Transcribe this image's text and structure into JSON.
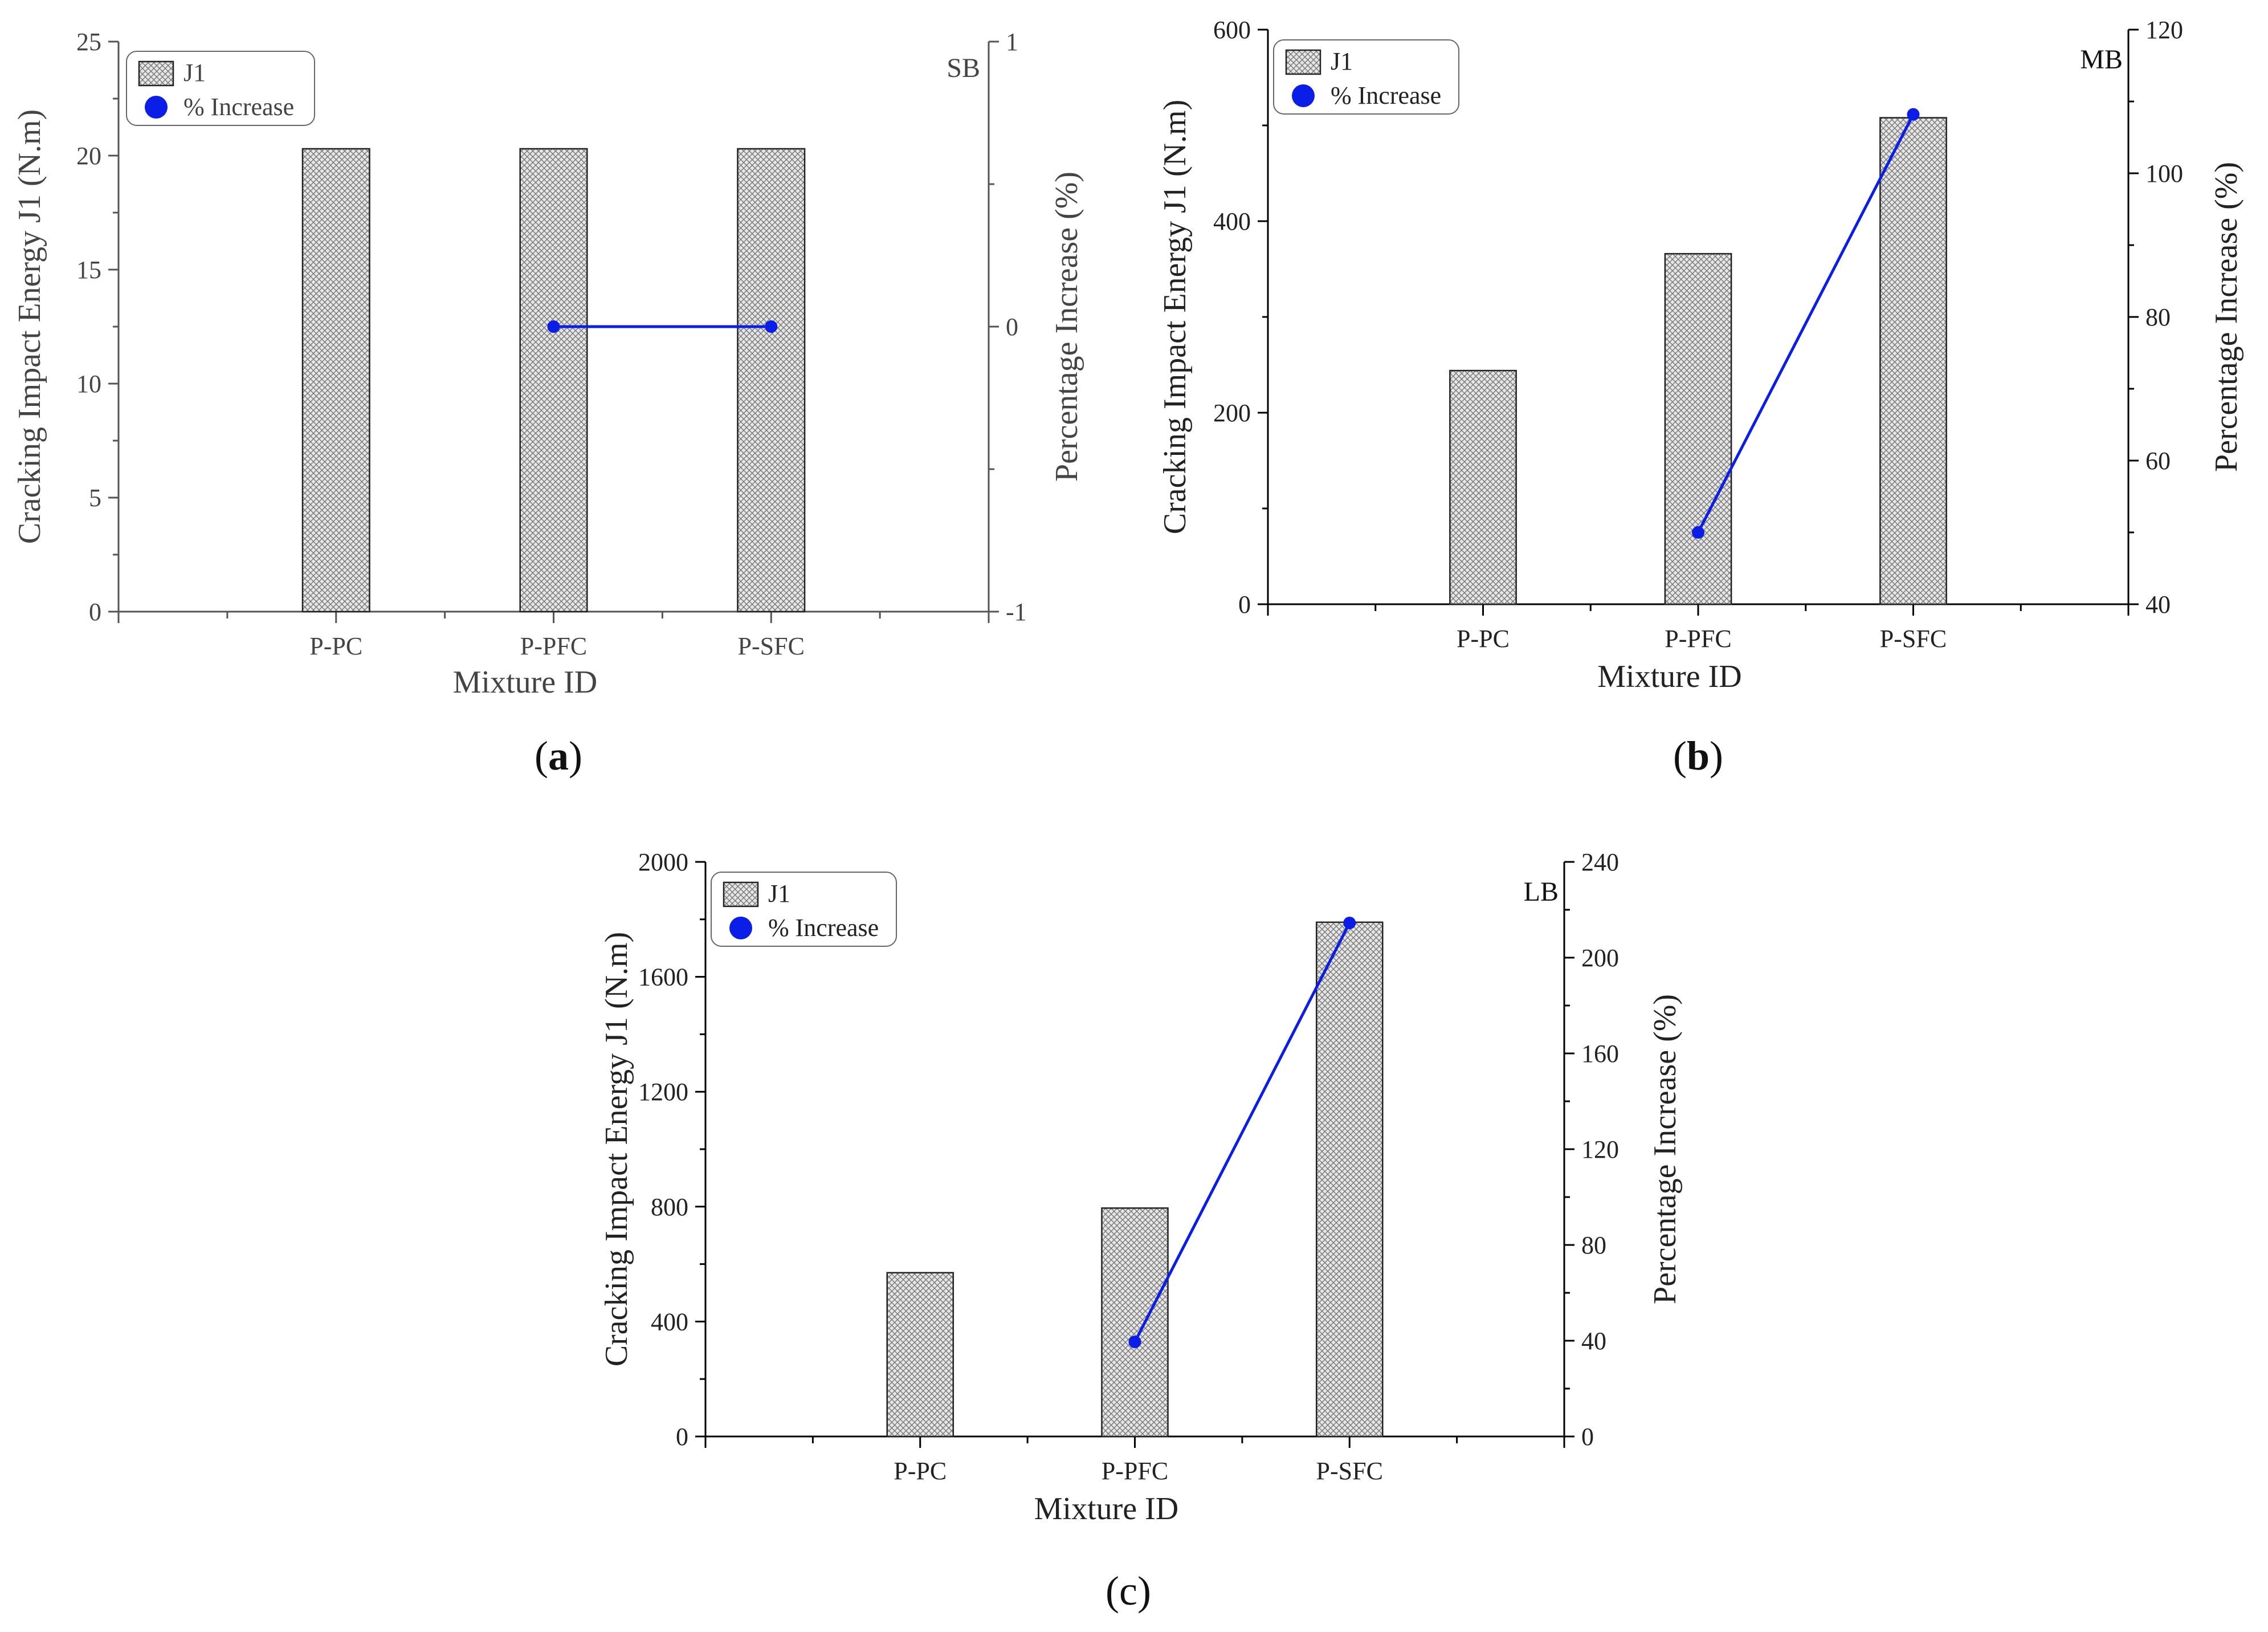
{
  "chart_data": [
    {
      "type": "bar",
      "panel": "a",
      "caption_letter": "a",
      "tag": "SB",
      "xlabel": "Mixture ID",
      "ylabel": "Cracking Impact Energy J1 (N.m)",
      "y2label": "Percentage Increase (%)",
      "categories": [
        "P-PC",
        "P-PFC",
        "P-SFC"
      ],
      "ylim": [
        0,
        25
      ],
      "yticks": [
        "0",
        "5",
        "10",
        "15",
        "20",
        "25"
      ],
      "y2lim": [
        -1,
        1
      ],
      "y2ticks": [
        "-1",
        "0",
        "1"
      ],
      "series": [
        {
          "name": "J1",
          "kind": "bar",
          "values": [
            20.3,
            20.3,
            20.3
          ]
        },
        {
          "name": "% Increase",
          "kind": "line",
          "color": "#0a1ee8",
          "values": [
            null,
            0,
            0
          ]
        }
      ]
    },
    {
      "type": "bar",
      "panel": "b",
      "caption_letter": "b",
      "tag": "MB",
      "xlabel": "Mixture ID",
      "ylabel": "Cracking Impact Energy J1 (N.m)",
      "y2label": "Percentage Increase (%)",
      "categories": [
        "P-PC",
        "P-PFC",
        "P-SFC"
      ],
      "ylim": [
        0,
        600
      ],
      "yticks": [
        "0",
        "200",
        "400",
        "600"
      ],
      "y2lim": [
        40,
        120
      ],
      "y2ticks": [
        "40",
        "60",
        "80",
        "100",
        "120"
      ],
      "series": [
        {
          "name": "J1",
          "kind": "bar",
          "values": [
            244,
            366,
            508
          ]
        },
        {
          "name": "% Increase",
          "kind": "line",
          "color": "#0a1ee8",
          "values": [
            null,
            50,
            108.2
          ]
        }
      ]
    },
    {
      "type": "bar",
      "panel": "c",
      "caption_letter": "c",
      "tag": "LB",
      "xlabel": "Mixture ID",
      "ylabel": "Cracking Impact Energy J1 (N.m)",
      "y2label": "Percentage Increase (%)",
      "categories": [
        "P-PC",
        "P-PFC",
        "P-SFC"
      ],
      "ylim": [
        0,
        2000
      ],
      "yticks": [
        "0",
        "400",
        "800",
        "1200",
        "1600",
        "2000"
      ],
      "y2lim": [
        0,
        240
      ],
      "y2ticks": [
        "0",
        "40",
        "80",
        "120",
        "160",
        "200",
        "240"
      ],
      "series": [
        {
          "name": "J1",
          "kind": "bar",
          "values": [
            570,
            795,
            1790
          ]
        },
        {
          "name": "% Increase",
          "kind": "line",
          "color": "#0a1ee8",
          "values": [
            null,
            39.5,
            214.5
          ]
        }
      ]
    }
  ]
}
